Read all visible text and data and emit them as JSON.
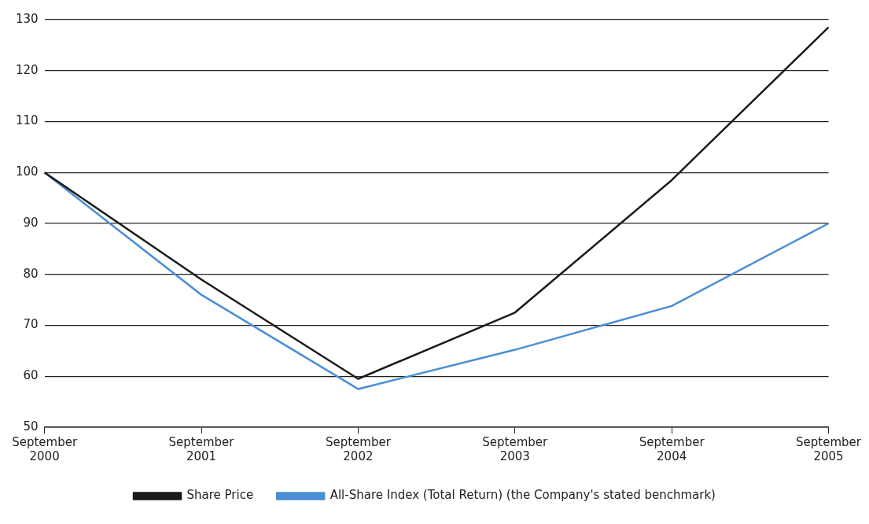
{
  "chart_data": {
    "type": "line",
    "categories": [
      "September 2000",
      "September 2001",
      "September 2002",
      "September 2003",
      "September 2004",
      "September 2005"
    ],
    "ylim": [
      50,
      130
    ],
    "yticks": [
      50,
      60,
      70,
      80,
      90,
      100,
      110,
      120,
      130
    ],
    "grid": "y",
    "legend": "bottom",
    "marker": "none",
    "line_style": "solid",
    "series": [
      {
        "name": "Share Price",
        "color": "#1a1a1a",
        "values": [
          100,
          79,
          59.5,
          72.5,
          98.5,
          128.5
        ]
      },
      {
        "name": "All-Share Index (Total Return) (the Company's stated benchmark)",
        "color": "#4a8fd4",
        "values": [
          100,
          76,
          57.5,
          65.2,
          73.8,
          90
        ]
      }
    ]
  }
}
